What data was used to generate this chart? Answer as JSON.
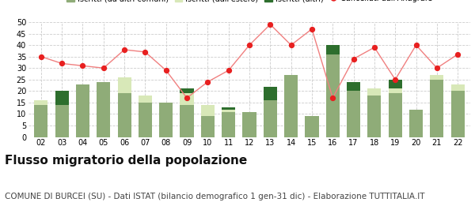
{
  "years": [
    "02",
    "03",
    "04",
    "05",
    "06",
    "07",
    "08",
    "09",
    "10",
    "11",
    "12",
    "13",
    "14",
    "15",
    "16",
    "17",
    "18",
    "19",
    "20",
    "21",
    "22"
  ],
  "iscritti_altri_comuni": [
    14,
    14,
    23,
    24,
    19,
    15,
    15,
    14,
    9,
    11,
    11,
    16,
    27,
    9,
    36,
    20,
    18,
    19,
    12,
    25,
    20
  ],
  "iscritti_estero": [
    2,
    0,
    0,
    0,
    7,
    3,
    0,
    5,
    5,
    1,
    0,
    0,
    0,
    0,
    0,
    0,
    3,
    2,
    0,
    2,
    3
  ],
  "iscritti_altri": [
    0,
    6,
    0,
    0,
    0,
    0,
    0,
    2,
    0,
    1,
    0,
    6,
    0,
    0,
    4,
    4,
    0,
    4,
    0,
    0,
    0
  ],
  "cancellati": [
    35,
    32,
    31,
    30,
    38,
    37,
    29,
    17,
    24,
    29,
    40,
    49,
    40,
    47,
    17,
    34,
    39,
    25,
    40,
    30,
    36
  ],
  "color_altri_comuni": "#8fac78",
  "color_estero": "#d8e8b8",
  "color_altri": "#2d6e2d",
  "color_cancellati": "#e82020",
  "color_cancellati_line": "#f08080",
  "background": "#ffffff",
  "grid_color": "#cccccc",
  "ylim": [
    0,
    50
  ],
  "yticks": [
    0,
    5,
    10,
    15,
    20,
    25,
    30,
    35,
    40,
    45,
    50
  ],
  "title": "Flusso migratorio della popolazione",
  "subtitle": "COMUNE DI BURCEI (SU) - Dati ISTAT (bilancio demografico 1 gen-31 dic) - Elaborazione TUTTITALIA.IT",
  "title_fontsize": 11,
  "subtitle_fontsize": 7.5,
  "tick_fontsize": 7,
  "legend_fontsize": 7
}
